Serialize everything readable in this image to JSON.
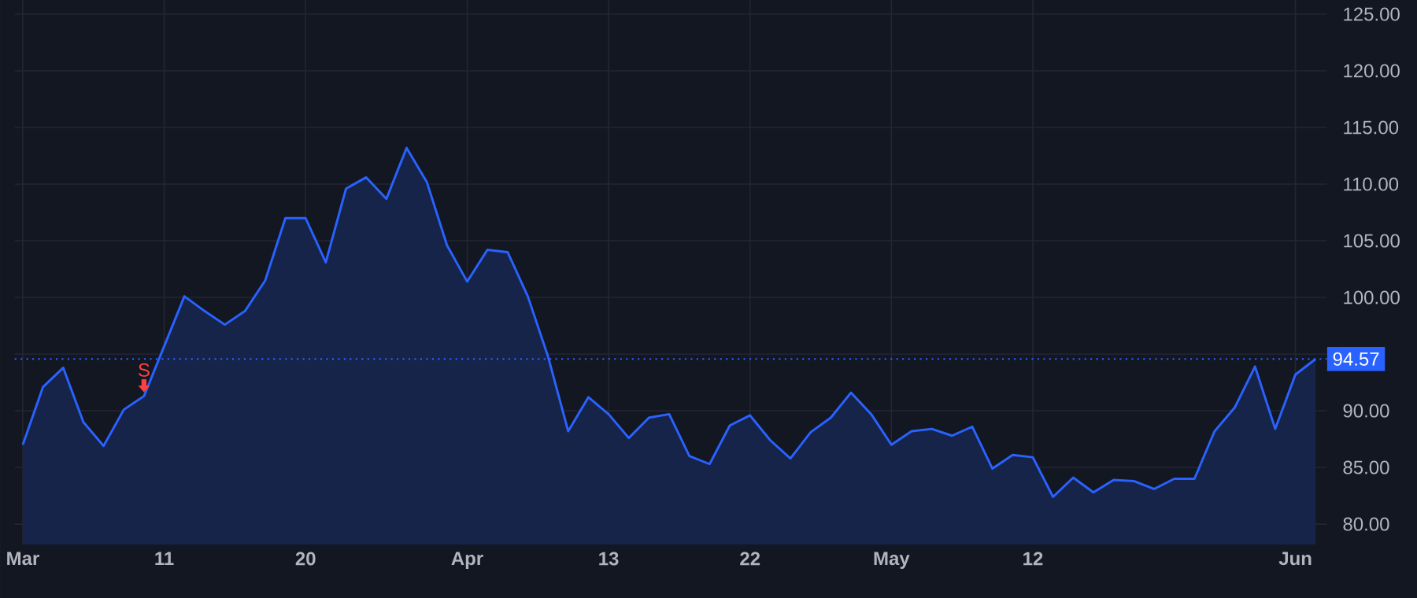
{
  "chart_data": {
    "type": "area",
    "categories": [
      "Mar",
      null,
      null,
      null,
      null,
      null,
      null,
      "11",
      null,
      null,
      null,
      null,
      null,
      null,
      "20",
      null,
      null,
      null,
      null,
      null,
      null,
      null,
      "Apr",
      null,
      null,
      null,
      null,
      null,
      null,
      "13",
      null,
      null,
      null,
      null,
      null,
      null,
      "22",
      null,
      null,
      null,
      null,
      null,
      null,
      "May",
      null,
      null,
      null,
      null,
      null,
      null,
      "12",
      null,
      null,
      null,
      null,
      null,
      null,
      null,
      null,
      null,
      null,
      null,
      null,
      "Jun",
      null
    ],
    "series": [
      {
        "color": "#2962ff",
        "values": [
          87.0,
          92.1,
          93.8,
          89.0,
          86.9,
          90.1,
          91.3,
          95.7,
          100.1,
          98.8,
          97.6,
          98.8,
          101.5,
          107.0,
          107.0,
          103.1,
          109.6,
          110.6,
          108.7,
          113.2,
          110.2,
          104.6,
          101.4,
          104.2,
          104.0,
          100.1,
          94.8,
          88.2,
          91.2,
          89.7,
          87.6,
          89.4,
          89.7,
          86.0,
          85.3,
          88.7,
          89.6,
          87.4,
          85.8,
          88.1,
          89.4,
          91.6,
          89.7,
          87.0,
          88.2,
          88.4,
          87.8,
          88.6,
          84.9,
          86.1,
          85.9,
          82.4,
          84.1,
          82.8,
          83.9,
          83.8,
          83.1,
          84.0,
          84.0,
          88.2,
          90.3,
          93.9,
          88.4,
          93.2,
          94.57
        ]
      }
    ],
    "ylim": [
      78.2,
      126.25
    ],
    "yticks": [
      {
        "value": 80,
        "label": "80.00"
      },
      {
        "value": 85,
        "label": "85.00"
      },
      {
        "value": 90,
        "label": "90.00"
      },
      {
        "value": 95,
        "label": null
      },
      {
        "value": 100,
        "label": "100.00"
      },
      {
        "value": 105,
        "label": "105.00"
      },
      {
        "value": 110,
        "label": "110.00"
      },
      {
        "value": 115,
        "label": "115.00"
      },
      {
        "value": 120,
        "label": "120.00"
      },
      {
        "value": 125,
        "label": "125.00"
      }
    ],
    "ref_lines": [
      {
        "axis": "y",
        "value": 94.57,
        "label": "94.57",
        "color": "#2962ff",
        "line_style": "dotted"
      }
    ],
    "annotations": [
      "S"
    ],
    "grid": true,
    "line_style": "solid"
  }
}
